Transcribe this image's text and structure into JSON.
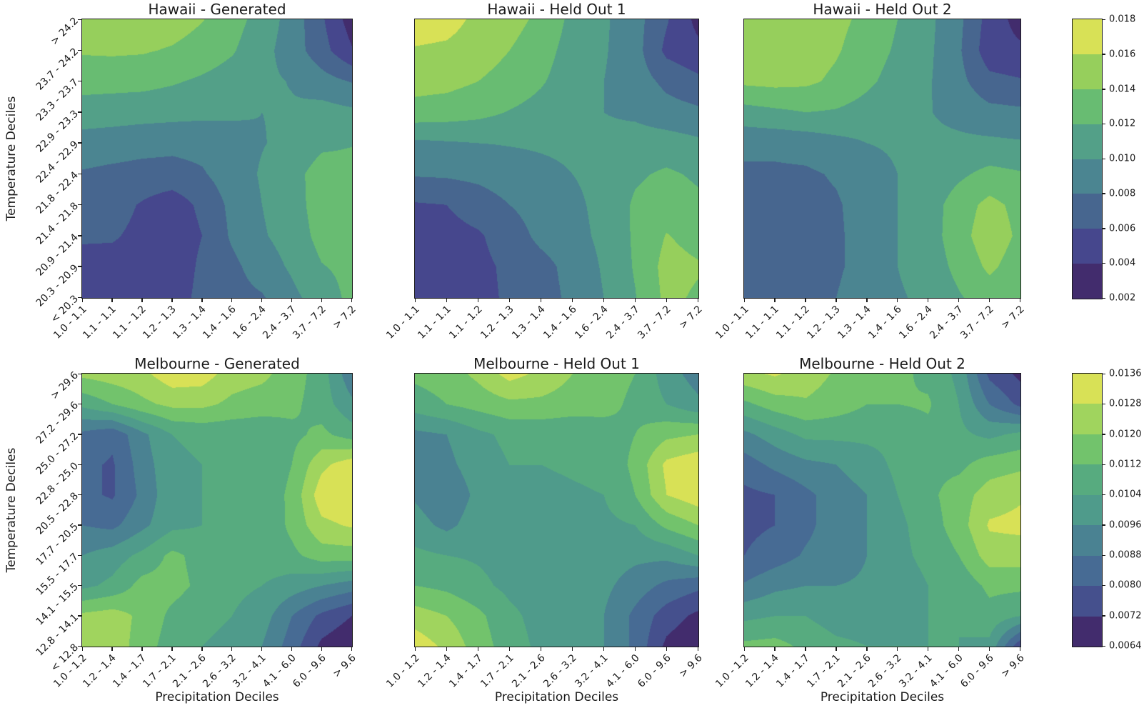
{
  "axes": {
    "y_label": "Temperature Deciles",
    "x_label": "Precipitation Deciles"
  },
  "chart_data": [
    {
      "type": "heatmap",
      "style": "filled-contour",
      "title": "Hawaii - Generated",
      "x_tick_labels": [
        "1.0 - 1.1",
        "1.1 - 1.1",
        "1.1 - 1.2",
        "1.2 - 1.3",
        "1.3 - 1.4",
        "1.4 - 1.6",
        "1.6 - 2.4",
        "2.4 - 3.7",
        "3.7 - 7.2",
        "> 7.2"
      ],
      "y_tick_labels_top_to_bottom": [
        "> 24.2",
        "23.7 - 24.2",
        "23.3 - 23.7",
        "22.9 - 23.3",
        "22.4 - 22.9",
        "21.8 - 22.4",
        "21.4 - 21.8",
        "20.9 - 21.4",
        "20.3 - 20.9",
        "< 20.3"
      ],
      "levels": [
        0.002,
        0.004,
        0.006,
        0.008,
        0.01,
        0.012,
        0.014,
        0.016,
        0.018
      ],
      "band_colors_low_to_high": [
        "#422c6d",
        "#46478d",
        "#47668f",
        "#4b8591",
        "#53a088",
        "#68bc72",
        "#96cf5c",
        "#d8e156"
      ],
      "grid_rows_top_to_bottom": [
        [
          0.0151,
          0.0152,
          0.0152,
          0.015,
          0.0141,
          0.0128,
          0.0112,
          0.0092,
          0.0063,
          0.003
        ],
        [
          0.0142,
          0.0143,
          0.0142,
          0.0138,
          0.0131,
          0.0122,
          0.0107,
          0.009,
          0.0068,
          0.0042
        ],
        [
          0.0128,
          0.0127,
          0.0126,
          0.0122,
          0.0117,
          0.0111,
          0.0104,
          0.0099,
          0.0088,
          0.0079
        ],
        [
          0.011,
          0.0109,
          0.0108,
          0.0107,
          0.0105,
          0.0103,
          0.01,
          0.0102,
          0.0108,
          0.0104
        ],
        [
          0.0092,
          0.009,
          0.0087,
          0.0085,
          0.0086,
          0.0092,
          0.0099,
          0.0105,
          0.0116,
          0.0119
        ],
        [
          0.0078,
          0.0075,
          0.0073,
          0.0073,
          0.0078,
          0.009,
          0.0102,
          0.0113,
          0.0129,
          0.0127
        ],
        [
          0.007,
          0.0068,
          0.0058,
          0.0048,
          0.0065,
          0.0085,
          0.01,
          0.011,
          0.0131,
          0.0129
        ],
        [
          0.0063,
          0.0062,
          0.0055,
          0.0045,
          0.006,
          0.0083,
          0.0098,
          0.0108,
          0.0127,
          0.0127
        ],
        [
          0.0052,
          0.0053,
          0.0053,
          0.0043,
          0.0065,
          0.0075,
          0.009,
          0.0103,
          0.0119,
          0.0125
        ],
        [
          0.0043,
          0.0046,
          0.0043,
          0.0046,
          0.0068,
          0.0073,
          0.0078,
          0.0095,
          0.011,
          0.0125
        ]
      ]
    },
    {
      "type": "heatmap",
      "style": "filled-contour",
      "title": "Hawaii - Held Out 1",
      "x_tick_labels": [
        "1.0 - 1.1",
        "1.1 - 1.1",
        "1.1 - 1.2",
        "1.2 - 1.3",
        "1.3 - 1.4",
        "1.4 - 1.6",
        "1.6 - 2.4",
        "2.4 - 3.7",
        "3.7 - 7.2",
        "> 7.2"
      ],
      "y_tick_labels_top_to_bottom": [
        "> 24.2",
        "23.7 - 24.2",
        "23.3 - 23.7",
        "22.9 - 23.3",
        "22.4 - 22.9",
        "21.8 - 22.4",
        "21.4 - 21.8",
        "20.9 - 21.4",
        "20.3 - 20.9",
        "< 20.3"
      ],
      "levels": [
        0.002,
        0.004,
        0.006,
        0.008,
        0.01,
        0.012,
        0.014,
        0.016,
        0.018
      ],
      "band_colors_low_to_high": [
        "#422c6d",
        "#46478d",
        "#47668f",
        "#4b8591",
        "#53a088",
        "#68bc72",
        "#96cf5c",
        "#d8e156"
      ],
      "grid_rows_top_to_bottom": [
        [
          0.0172,
          0.0168,
          0.0155,
          0.0148,
          0.0135,
          0.0115,
          0.0103,
          0.0088,
          0.0062,
          0.0034
        ],
        [
          0.0158,
          0.0156,
          0.015,
          0.014,
          0.0128,
          0.0112,
          0.0102,
          0.0088,
          0.0055,
          0.0045
        ],
        [
          0.0148,
          0.0146,
          0.014,
          0.0132,
          0.0122,
          0.011,
          0.01,
          0.009,
          0.0075,
          0.0065
        ],
        [
          0.0132,
          0.013,
          0.0126,
          0.0119,
          0.0113,
          0.0105,
          0.01,
          0.0096,
          0.0088,
          0.0084
        ],
        [
          0.0096,
          0.0098,
          0.01,
          0.0101,
          0.0102,
          0.0103,
          0.0105,
          0.0109,
          0.0109,
          0.0104
        ],
        [
          0.0082,
          0.0083,
          0.0086,
          0.0092,
          0.0096,
          0.01,
          0.0105,
          0.0117,
          0.0123,
          0.0117
        ],
        [
          0.0058,
          0.006,
          0.0068,
          0.008,
          0.009,
          0.0096,
          0.0105,
          0.0123,
          0.0131,
          0.0124
        ],
        [
          0.0052,
          0.0054,
          0.0058,
          0.0068,
          0.0086,
          0.0094,
          0.0104,
          0.0123,
          0.0141,
          0.0133
        ],
        [
          0.005,
          0.0052,
          0.0056,
          0.0063,
          0.0072,
          0.0088,
          0.0102,
          0.0122,
          0.0147,
          0.0142
        ],
        [
          0.005,
          0.0052,
          0.0056,
          0.0062,
          0.0069,
          0.0086,
          0.01,
          0.0119,
          0.0145,
          0.0137
        ]
      ]
    },
    {
      "type": "heatmap",
      "style": "filled-contour",
      "title": "Hawaii - Held Out 2",
      "x_tick_labels": [
        "1.0 - 1.1",
        "1.1 - 1.1",
        "1.1 - 1.2",
        "1.2 - 1.3",
        "1.3 - 1.4",
        "1.4 - 1.6",
        "1.6 - 2.4",
        "2.4 - 3.7",
        "3.7 - 7.2",
        "> 7.2"
      ],
      "y_tick_labels_top_to_bottom": [
        "> 24.2",
        "23.7 - 24.2",
        "23.3 - 23.7",
        "22.9 - 23.3",
        "22.4 - 22.9",
        "21.8 - 22.4",
        "21.4 - 21.8",
        "20.9 - 21.4",
        "20.3 - 20.9",
        "< 20.3"
      ],
      "levels": [
        0.002,
        0.004,
        0.006,
        0.008,
        0.01,
        0.012,
        0.014,
        0.016,
        0.018
      ],
      "band_colors_low_to_high": [
        "#422c6d",
        "#46478d",
        "#47668f",
        "#4b8591",
        "#53a088",
        "#68bc72",
        "#96cf5c",
        "#d8e156"
      ],
      "grid_rows_top_to_bottom": [
        [
          0.0155,
          0.0154,
          0.0152,
          0.0145,
          0.0135,
          0.012,
          0.0105,
          0.0085,
          0.0052,
          0.0032
        ],
        [
          0.0152,
          0.0152,
          0.015,
          0.0142,
          0.013,
          0.0117,
          0.0104,
          0.0083,
          0.0048,
          0.0044
        ],
        [
          0.0144,
          0.0146,
          0.0144,
          0.0136,
          0.0124,
          0.0112,
          0.0102,
          0.0086,
          0.0066,
          0.0062
        ],
        [
          0.0112,
          0.0116,
          0.012,
          0.0118,
          0.0112,
          0.0105,
          0.0101,
          0.0094,
          0.0086,
          0.0084
        ],
        [
          0.0086,
          0.0086,
          0.0088,
          0.0094,
          0.01,
          0.0103,
          0.0104,
          0.0104,
          0.0104,
          0.0102
        ],
        [
          0.0076,
          0.0076,
          0.0077,
          0.0082,
          0.009,
          0.01,
          0.0106,
          0.0116,
          0.0126,
          0.0122
        ],
        [
          0.0073,
          0.0073,
          0.0074,
          0.0078,
          0.0088,
          0.01,
          0.011,
          0.013,
          0.0146,
          0.0134
        ],
        [
          0.0072,
          0.0072,
          0.0073,
          0.0077,
          0.0088,
          0.01,
          0.011,
          0.0132,
          0.0152,
          0.0136
        ],
        [
          0.0072,
          0.0072,
          0.0073,
          0.0077,
          0.0088,
          0.01,
          0.0108,
          0.0126,
          0.0144,
          0.013
        ],
        [
          0.0072,
          0.0073,
          0.0075,
          0.008,
          0.0092,
          0.0098,
          0.0104,
          0.0118,
          0.013,
          0.0124
        ]
      ]
    },
    {
      "type": "heatmap",
      "style": "filled-contour",
      "title": "Melbourne - Generated",
      "x_tick_labels": [
        "1.0 - 1.2",
        "1.2 - 1.4",
        "1.4 - 1.7",
        "1.7 - 2.1",
        "2.1 - 2.6",
        "2.6 - 3.2",
        "3.2 - 4.1",
        "4.1 - 6.0",
        "6.0 - 9.6",
        "> 9.6"
      ],
      "y_tick_labels_top_to_bottom": [
        "> 29.6",
        "27.2 - 29.6",
        "25.0 - 27.2",
        "22.8 - 25.0",
        "20.5 - 22.8",
        "17.7 - 20.5",
        "15.5 - 17.7",
        "14.1 - 15.5",
        "12.8 - 14.1",
        "< 12.8"
      ],
      "levels": [
        0.0064,
        0.0072,
        0.008,
        0.0088,
        0.0096,
        0.0104,
        0.0112,
        0.012,
        0.0128,
        0.0136
      ],
      "band_colors_low_to_high": [
        "#422c6d",
        "#45508d",
        "#476b94",
        "#4a8292",
        "#4f9b8b",
        "#57ab7f",
        "#72c36c",
        "#a0d45e",
        "#d8e156"
      ],
      "grid_rows_top_to_bottom": [
        [
          0.0122,
          0.0124,
          0.0126,
          0.0133,
          0.0132,
          0.0124,
          0.0122,
          0.0116,
          0.0108,
          0.009
        ],
        [
          0.0106,
          0.0112,
          0.0118,
          0.0122,
          0.0122,
          0.0118,
          0.0116,
          0.0114,
          0.0108,
          0.0098
        ],
        [
          0.0086,
          0.0082,
          0.0094,
          0.0104,
          0.0106,
          0.0106,
          0.0106,
          0.011,
          0.0114,
          0.0108
        ],
        [
          0.0082,
          0.0079,
          0.0092,
          0.0102,
          0.0104,
          0.0104,
          0.0106,
          0.0112,
          0.0126,
          0.0133
        ],
        [
          0.0082,
          0.0079,
          0.009,
          0.0102,
          0.0104,
          0.0104,
          0.0106,
          0.0114,
          0.0133,
          0.0135
        ],
        [
          0.0088,
          0.0086,
          0.0094,
          0.0102,
          0.0104,
          0.0104,
          0.0105,
          0.0114,
          0.0126,
          0.0129
        ],
        [
          0.0096,
          0.01,
          0.0106,
          0.0114,
          0.0109,
          0.0105,
          0.0108,
          0.011,
          0.0116,
          0.0116
        ],
        [
          0.0102,
          0.0106,
          0.0115,
          0.0115,
          0.011,
          0.0106,
          0.0104,
          0.01,
          0.0096,
          0.0092
        ],
        [
          0.0122,
          0.0124,
          0.0118,
          0.011,
          0.0106,
          0.0104,
          0.01,
          0.0088,
          0.0078,
          0.0072
        ],
        [
          0.0124,
          0.0125,
          0.0116,
          0.0108,
          0.0104,
          0.0102,
          0.0096,
          0.0084,
          0.007,
          0.0065
        ]
      ]
    },
    {
      "type": "heatmap",
      "style": "filled-contour",
      "title": "Melbourne - Held Out 1",
      "x_tick_labels": [
        "1.0 - 1.2",
        "1.2 - 1.4",
        "1.4 - 1.7",
        "1.7 - 2.1",
        "2.1 - 2.6",
        "2.6 - 3.2",
        "3.2 - 4.1",
        "4.1 - 6.0",
        "6.0 - 9.6",
        "> 9.6"
      ],
      "y_tick_labels_top_to_bottom": [
        "> 29.6",
        "27.2 - 29.6",
        "25.0 - 27.2",
        "22.8 - 25.0",
        "20.5 - 22.8",
        "17.7 - 20.5",
        "15.5 - 17.7",
        "14.1 - 15.5",
        "12.8 - 14.1",
        "< 12.8"
      ],
      "levels": [
        0.0064,
        0.0072,
        0.008,
        0.0088,
        0.0096,
        0.0104,
        0.0112,
        0.012,
        0.0128,
        0.0136
      ],
      "band_colors_low_to_high": [
        "#422c6d",
        "#45508d",
        "#476b94",
        "#4a8292",
        "#4f9b8b",
        "#57ab7f",
        "#72c36c",
        "#a0d45e",
        "#d8e156"
      ],
      "grid_rows_top_to_bottom": [
        [
          0.0114,
          0.0116,
          0.0122,
          0.0131,
          0.0126,
          0.012,
          0.0116,
          0.0112,
          0.01,
          0.0092
        ],
        [
          0.0108,
          0.0112,
          0.0115,
          0.0118,
          0.0118,
          0.0116,
          0.0115,
          0.011,
          0.0104,
          0.0098
        ],
        [
          0.0094,
          0.0096,
          0.0102,
          0.0106,
          0.0106,
          0.0106,
          0.0108,
          0.0112,
          0.0118,
          0.012
        ],
        [
          0.0092,
          0.0094,
          0.01,
          0.0104,
          0.0104,
          0.0105,
          0.0106,
          0.0114,
          0.013,
          0.0134
        ],
        [
          0.0095,
          0.009,
          0.0098,
          0.0102,
          0.0102,
          0.0103,
          0.0104,
          0.0112,
          0.0128,
          0.0133
        ],
        [
          0.0099,
          0.0094,
          0.01,
          0.0101,
          0.0101,
          0.0101,
          0.0102,
          0.0104,
          0.0114,
          0.012
        ],
        [
          0.0106,
          0.0104,
          0.0103,
          0.0101,
          0.01,
          0.01,
          0.01,
          0.0098,
          0.0098,
          0.0104
        ],
        [
          0.0112,
          0.011,
          0.0106,
          0.0102,
          0.01,
          0.01,
          0.0098,
          0.0092,
          0.0086,
          0.0082
        ],
        [
          0.0124,
          0.012,
          0.0114,
          0.0106,
          0.0101,
          0.01,
          0.0096,
          0.0086,
          0.0076,
          0.007
        ],
        [
          0.0133,
          0.0126,
          0.0116,
          0.0108,
          0.0102,
          0.01,
          0.0096,
          0.0086,
          0.007,
          0.0065
        ]
      ]
    },
    {
      "type": "heatmap",
      "style": "filled-contour",
      "title": "Melbourne - Held Out 2",
      "x_tick_labels": [
        "1.0 - 1.2",
        "1.2 - 1.4",
        "1.4 - 1.7",
        "1.7 - 2.1",
        "2.1 - 2.6",
        "2.6 - 3.2",
        "3.2 - 4.1",
        "4.1 - 6.0",
        "6.0 - 9.6",
        "> 9.6"
      ],
      "y_tick_labels_top_to_bottom": [
        "> 29.6",
        "27.2 - 29.6",
        "25.0 - 27.2",
        "22.8 - 25.0",
        "20.5 - 22.8",
        "17.7 - 20.5",
        "15.5 - 17.7",
        "14.1 - 15.5",
        "12.8 - 14.1",
        "< 12.8"
      ],
      "levels": [
        0.0064,
        0.0072,
        0.008,
        0.0088,
        0.0096,
        0.0104,
        0.0112,
        0.012,
        0.0128,
        0.0136
      ],
      "band_colors_low_to_high": [
        "#422c6d",
        "#45508d",
        "#476b94",
        "#4a8292",
        "#4f9b8b",
        "#57ab7f",
        "#72c36c",
        "#a0d45e",
        "#d8e156"
      ],
      "grid_rows_top_to_bottom": [
        [
          0.0126,
          0.0129,
          0.0124,
          0.0119,
          0.0116,
          0.0114,
          0.011,
          0.0102,
          0.0078,
          0.007
        ],
        [
          0.011,
          0.0116,
          0.0119,
          0.0116,
          0.0112,
          0.0112,
          0.0113,
          0.0104,
          0.0088,
          0.0078
        ],
        [
          0.0094,
          0.01,
          0.0106,
          0.0106,
          0.0106,
          0.0106,
          0.011,
          0.0106,
          0.0102,
          0.0106
        ],
        [
          0.0084,
          0.009,
          0.0094,
          0.0096,
          0.01,
          0.0106,
          0.011,
          0.011,
          0.0116,
          0.0118
        ],
        [
          0.0078,
          0.008,
          0.0086,
          0.0092,
          0.0096,
          0.0104,
          0.011,
          0.0116,
          0.0124,
          0.0127
        ],
        [
          0.0078,
          0.008,
          0.0086,
          0.0092,
          0.0096,
          0.0102,
          0.0108,
          0.0116,
          0.0129,
          0.013
        ],
        [
          0.008,
          0.0084,
          0.0089,
          0.0092,
          0.0096,
          0.0102,
          0.0106,
          0.0112,
          0.0124,
          0.0124
        ],
        [
          0.0089,
          0.0094,
          0.0096,
          0.0096,
          0.0097,
          0.01,
          0.0104,
          0.0106,
          0.0114,
          0.0114
        ],
        [
          0.0102,
          0.0104,
          0.0104,
          0.01,
          0.01,
          0.0102,
          0.0104,
          0.0104,
          0.0109,
          0.0104
        ],
        [
          0.0114,
          0.0115,
          0.011,
          0.0106,
          0.0104,
          0.0104,
          0.0104,
          0.0104,
          0.0102,
          0.0074
        ]
      ]
    }
  ],
  "colorbars": [
    {
      "for_row": "Hawaii",
      "tick_labels_top_to_bottom": [
        "0.018",
        "0.016",
        "0.014",
        "0.012",
        "0.010",
        "0.008",
        "0.006",
        "0.004",
        "0.002"
      ],
      "band_colors_top_to_bottom": [
        "#d8e156",
        "#96cf5c",
        "#68bc72",
        "#53a088",
        "#4b8591",
        "#47668f",
        "#46478d",
        "#422c6d"
      ]
    },
    {
      "for_row": "Melbourne",
      "tick_labels_top_to_bottom": [
        "0.0136",
        "0.0128",
        "0.0120",
        "0.0112",
        "0.0104",
        "0.0096",
        "0.0088",
        "0.0080",
        "0.0072",
        "0.0064"
      ],
      "band_colors_top_to_bottom": [
        "#d8e156",
        "#a0d45e",
        "#72c36c",
        "#57ab7f",
        "#4f9b8b",
        "#4a8292",
        "#476b94",
        "#45508d",
        "#422c6d"
      ]
    }
  ]
}
